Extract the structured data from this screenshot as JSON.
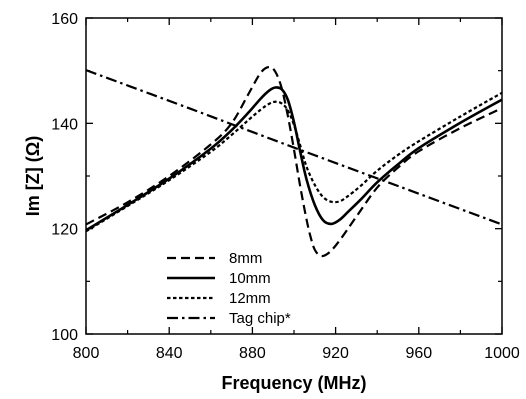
{
  "chart_data": {
    "type": "line",
    "xlabel": "Frequency (MHz)",
    "ylabel": "Im [Z] (Ω)",
    "xlim": [
      800,
      1000
    ],
    "ylim": [
      100,
      160
    ],
    "x_ticks": [
      800,
      840,
      880,
      920,
      960,
      1000
    ],
    "y_ticks": [
      100,
      120,
      140,
      160
    ],
    "legend_position": "lower-left",
    "grid": false,
    "series": [
      {
        "name": "8mm",
        "line_style": "dashed",
        "color": "#000000",
        "x": [
          800,
          820,
          840,
          860,
          870,
          878,
          884,
          888,
          891,
          894,
          897,
          900,
          903,
          906,
          908,
          910,
          913,
          917,
          922,
          930,
          940,
          950,
          960,
          980,
          1000
        ],
        "y": [
          120.8,
          125,
          130,
          136,
          140,
          145.5,
          149.6,
          150.7,
          149.8,
          146.8,
          141.5,
          135,
          128,
          121.8,
          118.4,
          116,
          114.8,
          115.5,
          117.8,
          122.3,
          127.8,
          131.6,
          134.7,
          139.1,
          142.9
        ]
      },
      {
        "name": "10mm",
        "line_style": "solid",
        "color": "#000000",
        "x": [
          800,
          820,
          840,
          860,
          870,
          878,
          884,
          888,
          891,
          894,
          897,
          900,
          903,
          906,
          910,
          914,
          918,
          922,
          926,
          932,
          940,
          950,
          960,
          980,
          1000
        ],
        "y": [
          119.7,
          124.5,
          129.5,
          135.2,
          138.7,
          142,
          144.7,
          146.2,
          146.8,
          146.5,
          144.5,
          140.2,
          134.6,
          129.4,
          124.5,
          121.6,
          120.9,
          121.7,
          123.2,
          125.5,
          128.8,
          132.2,
          135.3,
          140.1,
          144.5
        ]
      },
      {
        "name": "12mm",
        "line_style": "dotted",
        "color": "#000000",
        "x": [
          800,
          820,
          840,
          860,
          870,
          878,
          884,
          888,
          891,
          894,
          897,
          900,
          903,
          906,
          910,
          914,
          918,
          922,
          926,
          932,
          940,
          950,
          960,
          980,
          1000
        ],
        "y": [
          119.5,
          124.3,
          129.2,
          134.6,
          137.8,
          140.6,
          142.6,
          143.7,
          144.1,
          143.8,
          142.5,
          139.7,
          135.8,
          131.8,
          128.3,
          126,
          125.1,
          125.2,
          126.2,
          128.1,
          131,
          134,
          136.6,
          141.3,
          145.8
        ]
      },
      {
        "name": "Tag chip*",
        "line_style": "dash-dot",
        "color": "#000000",
        "x": [
          800,
          850,
          900,
          950,
          1000
        ],
        "y": [
          150.1,
          142.8,
          135.4,
          128.1,
          120.8
        ]
      }
    ]
  }
}
